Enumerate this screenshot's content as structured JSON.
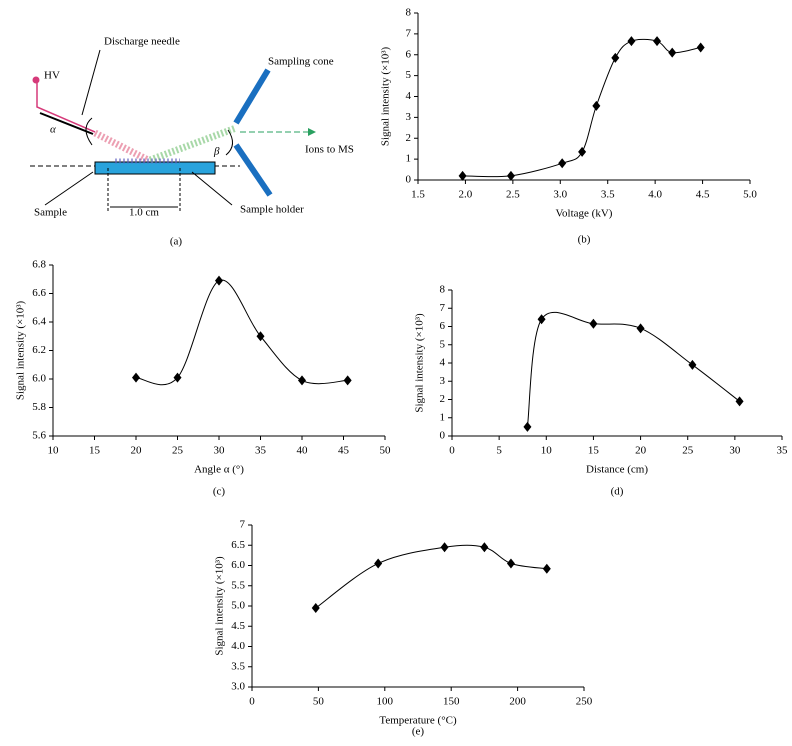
{
  "diagram": {
    "hv": "HV",
    "needle": "Discharge needle",
    "cone": "Sampling cone",
    "ions": "Ions to MS",
    "alpha": "α",
    "beta": "β",
    "sample": "Sample",
    "width": "1.0 cm",
    "holder": "Sample holder",
    "label": "(a)"
  },
  "chart_data": [
    {
      "type": "line",
      "label": "(b)",
      "x_label": "Voltage (kV)",
      "y_label": "Signal intensity (×10³)",
      "color": "#000000",
      "x": [
        1.97,
        2.48,
        3.02,
        3.23,
        3.38,
        3.58,
        3.75,
        4.02,
        4.18,
        4.48
      ],
      "values": [
        0.2,
        0.2,
        0.8,
        1.35,
        3.55,
        5.85,
        6.65,
        6.65,
        6.1,
        6.35
      ],
      "xlim": [
        1.5,
        5.0
      ],
      "xticks": [
        1.5,
        {
          "value": 2,
          "label": "2.0"
        },
        2.5,
        {
          "value": 3,
          "label": "3.0"
        },
        3.5,
        {
          "value": 4,
          "label": "4.0"
        },
        4.5,
        {
          "value": 5,
          "label": "5.0"
        }
      ],
      "ylim": [
        0,
        8
      ],
      "yticks": [
        0,
        1,
        2,
        3,
        4,
        5,
        6,
        7,
        8
      ]
    },
    {
      "type": "line",
      "label": "(c)",
      "x_label": "Angle α (°)",
      "y_label": "Signal intensity (×10³)",
      "color": "#000000",
      "x": [
        20,
        25,
        30,
        35,
        40,
        45.5
      ],
      "values": [
        6.01,
        6.01,
        6.69,
        6.3,
        5.99,
        5.99
      ],
      "xlim": [
        10,
        50
      ],
      "xticks": [
        10,
        15,
        20,
        25,
        30,
        35,
        40,
        45,
        50
      ],
      "ylim": [
        5.6,
        6.8
      ],
      "yticks": [
        5.6,
        5.8,
        {
          "value": 6,
          "label": "6.0"
        },
        6.2,
        6.4,
        6.6,
        6.8
      ]
    },
    {
      "type": "line",
      "label": "(d)",
      "x_label": "Distance (cm)",
      "y_label": "Signal intensity (×10³)",
      "color": "#000000",
      "x": [
        8,
        9.5,
        15,
        20,
        25.5,
        30.5
      ],
      "values": [
        0.5,
        6.4,
        6.15,
        5.9,
        3.9,
        1.9
      ],
      "xlim": [
        0,
        35
      ],
      "xticks": [
        0,
        5,
        10,
        15,
        20,
        25,
        30,
        35
      ],
      "ylim": [
        0,
        8
      ],
      "yticks": [
        0,
        1,
        2,
        3,
        4,
        5,
        6,
        7,
        8
      ]
    },
    {
      "type": "line",
      "label": "(e)",
      "x_label": "Temperature (°C)",
      "y_label": "Signal intensity (×10³)",
      "color": "#000000",
      "x": [
        48,
        95,
        145,
        175,
        195,
        222
      ],
      "values": [
        4.95,
        6.05,
        6.45,
        6.45,
        6.05,
        5.92
      ],
      "xlim": [
        0,
        250
      ],
      "xticks": [
        0,
        50,
        100,
        150,
        200,
        250
      ],
      "ylim": [
        3,
        7
      ],
      "yticks": [
        {
          "value": 3,
          "label": "3.0"
        },
        3.5,
        {
          "value": 4,
          "label": "4.0"
        },
        4.5,
        {
          "value": 5,
          "label": "5.0"
        },
        5.5,
        {
          "value": 6,
          "label": "6.0"
        },
        6.5,
        7
      ]
    }
  ]
}
